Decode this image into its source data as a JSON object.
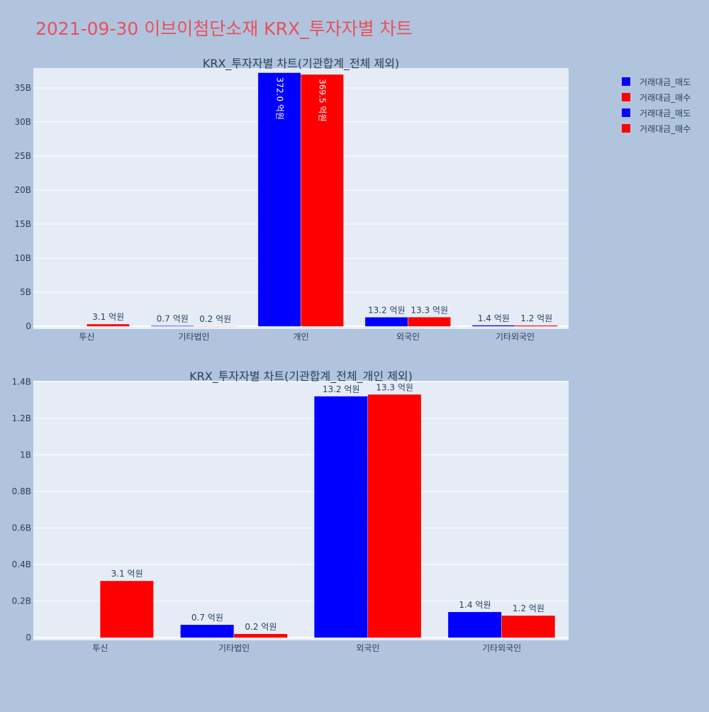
{
  "page_title": "2021-09-30 이브이첨단소재 KRX_투자자별 차트",
  "colors": {
    "sell": "#0000ff",
    "buy": "#ff0000",
    "plot_bg": "#e5ecf6",
    "page_bg": "#b0c4de",
    "title": "#e8505b"
  },
  "legend": [
    {
      "name": "거래대금_매도",
      "color": "#0000ff"
    },
    {
      "name": "거래대금_매수",
      "color": "#ff0000"
    },
    {
      "name": "거래대금_매도",
      "color": "#0000ff"
    },
    {
      "name": "거래대금_매수",
      "color": "#ff0000"
    }
  ],
  "chart_data": [
    {
      "type": "bar",
      "title": "KRX_투자자별 차트(기관합계_전체 제외)",
      "categories": [
        "투신",
        "기타법인",
        "개인",
        "외국인",
        "기타외국인"
      ],
      "series": [
        {
          "name": "거래대금_매도",
          "values": [
            0,
            70000000,
            37200000000,
            1320000000,
            140000000
          ],
          "labels": [
            "",
            "0.7 억원",
            "372.0 억원",
            "13.2 억원",
            "1.4 억원"
          ]
        },
        {
          "name": "거래대금_매수",
          "values": [
            310000000,
            20000000,
            36950000000,
            1330000000,
            120000000
          ],
          "labels": [
            "3.1 억원",
            "0.2 억원",
            "369.5 억원",
            "13.3 억원",
            "1.2 억원"
          ]
        }
      ],
      "yticks": [
        0,
        5000000000,
        10000000000,
        15000000000,
        20000000000,
        25000000000,
        30000000000,
        35000000000
      ],
      "ytick_labels": [
        "0",
        "5B",
        "10B",
        "15B",
        "20B",
        "25B",
        "30B",
        "35B"
      ],
      "ylim": [
        -400000000,
        37900000000
      ],
      "grid": true
    },
    {
      "type": "bar",
      "title": "KRX_투자자별 차트(기관합계_전체_개인 제외)",
      "categories": [
        "투신",
        "기타법인",
        "외국인",
        "기타외국인"
      ],
      "series": [
        {
          "name": "거래대금_매도",
          "values": [
            0,
            70000000,
            1320000000,
            140000000
          ],
          "labels": [
            "",
            "0.7 억원",
            "13.2 억원",
            "1.4 억원"
          ]
        },
        {
          "name": "거래대금_매수",
          "values": [
            310000000,
            20000000,
            1330000000,
            120000000
          ],
          "labels": [
            "3.1 억원",
            "0.2 억원",
            "13.3 억원",
            "1.2 억원"
          ]
        }
      ],
      "yticks": [
        0,
        200000000,
        400000000,
        600000000,
        800000000,
        1000000000,
        1200000000,
        1400000000
      ],
      "ytick_labels": [
        "0",
        "0.2B",
        "0.4B",
        "0.6B",
        "0.8B",
        "1B",
        "1.2B",
        "1.4B"
      ],
      "ylim": [
        -15000000,
        1405000000
      ],
      "grid": true
    }
  ]
}
